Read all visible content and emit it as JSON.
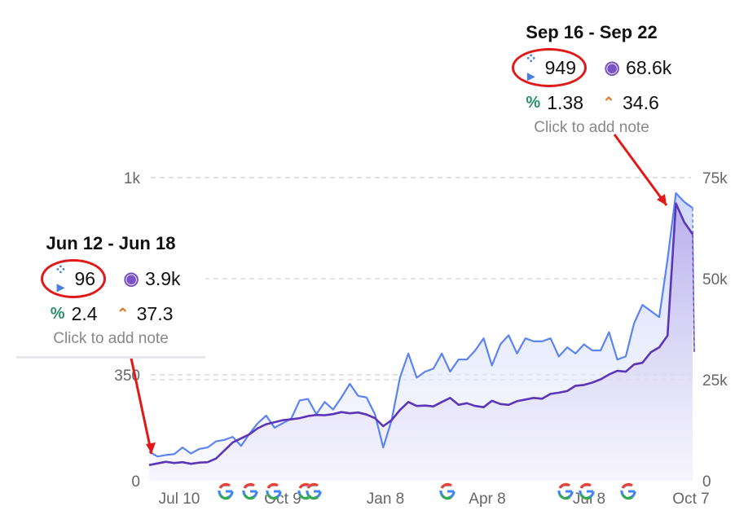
{
  "chart_data": {
    "type": "line",
    "x_ticks": [
      "Jul 10",
      "Oct 9",
      "Jan 8",
      "Apr 8",
      "Jul 8",
      "Oct 7"
    ],
    "y_left_ticks": [
      "0",
      "350",
      "1k"
    ],
    "y_right_ticks": [
      "0",
      "25k",
      "50k",
      "75k"
    ],
    "ylim_left": [
      0,
      1000
    ],
    "ylim_right": [
      0,
      75000
    ],
    "grid": true,
    "series": [
      {
        "color": "#5b84f0",
        "axis": "left",
        "values": [
          96,
          80,
          85,
          88,
          110,
          90,
          105,
          110,
          130,
          135,
          145,
          115,
          155,
          190,
          215,
          175,
          190,
          205,
          265,
          270,
          220,
          260,
          235,
          275,
          320,
          280,
          275,
          220,
          110,
          200,
          340,
          420,
          340,
          360,
          370,
          420,
          360,
          400,
          400,
          430,
          470,
          380,
          450,
          480,
          420,
          470,
          460,
          460,
          470,
          410,
          440,
          420,
          450,
          430,
          430,
          490,
          400,
          410,
          520,
          580,
          560,
          540,
          730,
          949,
          920,
          900
        ]
      },
      {
        "color": "#5b36b8",
        "axis": "right",
        "values": [
          3900,
          4300,
          4700,
          4400,
          4600,
          4200,
          4500,
          4600,
          5500,
          7500,
          9500,
          10500,
          11500,
          13000,
          14000,
          14500,
          15000,
          15200,
          15500,
          16000,
          16300,
          16200,
          16500,
          17000,
          16700,
          16900,
          16400,
          15500,
          13500,
          15000,
          17500,
          19500,
          18500,
          18600,
          18400,
          19500,
          20500,
          18800,
          19200,
          18500,
          18200,
          19800,
          19000,
          18800,
          19700,
          20100,
          20500,
          20300,
          21500,
          21800,
          22200,
          23500,
          23700,
          24300,
          25100,
          26300,
          27200,
          27000,
          28800,
          29200,
          31800,
          33000,
          35900,
          68600,
          64000,
          61000
        ]
      }
    ],
    "annotations": [
      {
        "title": "Jun 12 - Jun 18",
        "clicks": "96",
        "impressions": "3.9k",
        "ctr": "2.4",
        "position": "37.3",
        "note": "Click to add note"
      },
      {
        "title": "Sep 16 - Sep 22",
        "clicks": "949",
        "impressions": "68.6k",
        "ctr": "1.38",
        "position": "34.6",
        "note": "Click to add note"
      }
    ],
    "google_markers": 9
  },
  "icons": {
    "clicks": "cursor-click-icon",
    "impressions": "eye-icon",
    "ctr": "percent-icon",
    "position": "position-chevron-icon",
    "marker": "google-g-icon"
  },
  "colors": {
    "clicks": "#5b84f0",
    "impressions": "#5b36b8",
    "highlight": "#e01919"
  }
}
